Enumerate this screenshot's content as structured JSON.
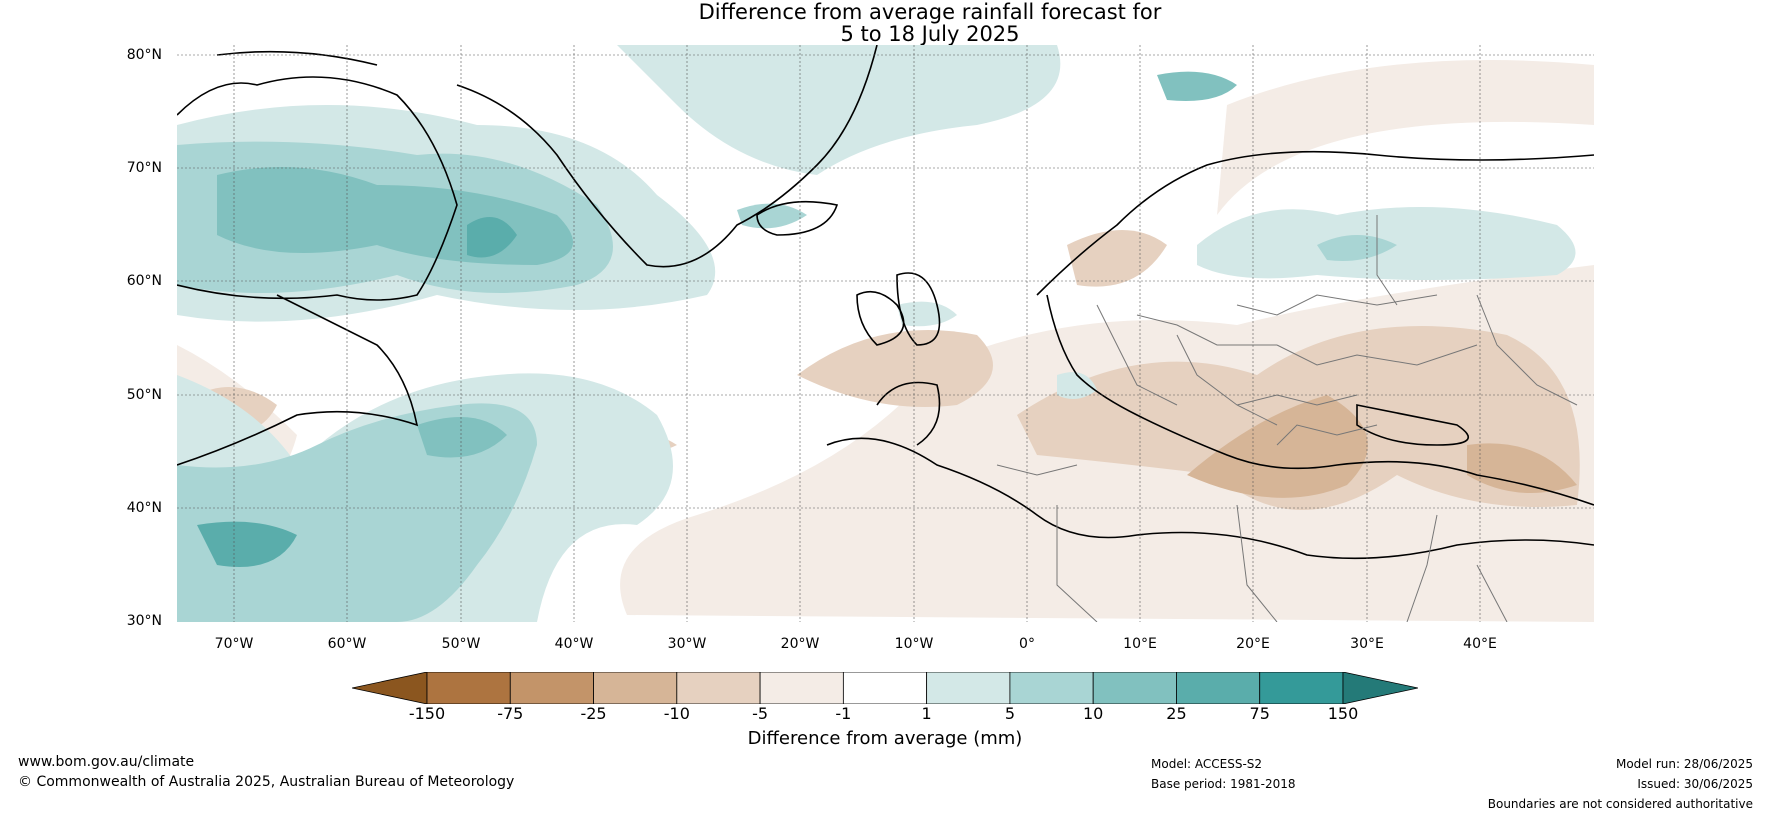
{
  "title": {
    "line1": "Difference from average rainfall forecast for",
    "line2": "5 to 18 July 2025"
  },
  "latitude_labels": [
    "80°N",
    "70°N",
    "60°N",
    "50°N",
    "40°N",
    "30°N"
  ],
  "longitude_labels": [
    "70°W",
    "60°W",
    "50°W",
    "40°W",
    "30°W",
    "20°W",
    "10°W",
    "0°",
    "10°E",
    "20°E",
    "30°E",
    "40°E"
  ],
  "colorbar": {
    "ticks": [
      "-150",
      "-75",
      "-25",
      "-10",
      "-5",
      "-1",
      "1",
      "5",
      "10",
      "25",
      "75",
      "150"
    ],
    "colors": [
      "#8b561f",
      "#ad7440",
      "#c39469",
      "#d6b597",
      "#e6d1c0",
      "#f4ece6",
      "#ffffff",
      "#d3e8e7",
      "#a9d5d4",
      "#81c1bf",
      "#5aadab",
      "#349a99",
      "#247a78"
    ],
    "label": "Difference from average (mm)"
  },
  "footer": {
    "website": "www.bom.gov.au/climate",
    "copyright": "© Commonwealth of Australia 2025, Australian Bureau of Meteorology",
    "model": "Model: ACCESS-S2",
    "base_period": "Base period: 1981-2018",
    "model_run": "Model run: 28/06/2025",
    "issued": "Issued: 30/06/2025",
    "disclaimer": "Boundaries are not considered authoritative"
  }
}
